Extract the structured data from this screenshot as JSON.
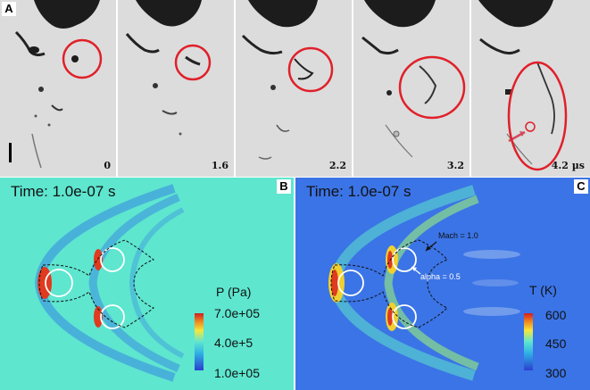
{
  "panel_a": {
    "letter": "A",
    "frames": [
      {
        "time": "0"
      },
      {
        "time": "1.6"
      },
      {
        "time": "2.2"
      },
      {
        "time": "3.2"
      },
      {
        "time": "4.2 µs"
      }
    ]
  },
  "panel_b": {
    "letter": "B",
    "time_label": "Time: 1.0e-07 s",
    "legend_title": "P (Pa)",
    "legend_ticks": [
      "7.0e+05",
      "4.0e+5",
      "1.0e+05"
    ]
  },
  "panel_c": {
    "letter": "C",
    "time_label": "Time: 1.0e-07 s",
    "legend_title": "T (K)",
    "legend_ticks": [
      "600",
      "450",
      "300"
    ],
    "annotations": {
      "mach": "Mach = 1.0",
      "alpha": "alpha = 0.5"
    }
  },
  "colors": {
    "pressure_bg": "#5ee6cf",
    "temperature_bg": "#3b74e6",
    "circle_red": "#e0202a"
  }
}
